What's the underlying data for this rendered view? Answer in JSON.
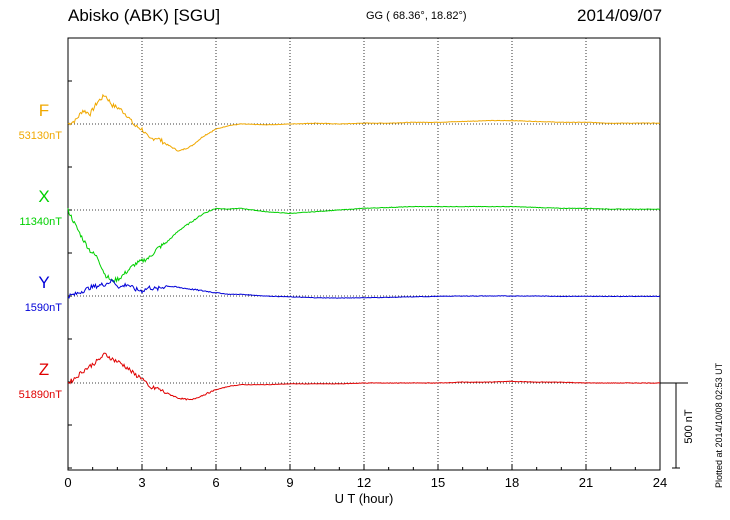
{
  "header": {
    "station": "Abisko (ABK)  [SGU]",
    "coords": "GG ( 68.36°,  18.82°)",
    "date": "2014/09/07"
  },
  "footer": {
    "plotted": "Plotted at 2014/10/08 02:53 UT"
  },
  "chart_data": {
    "type": "line",
    "title": "Abisko (ABK)  [SGU]",
    "xlabel": "U T (hour)",
    "ylabel": "",
    "xlim": [
      0,
      24
    ],
    "xticks": [
      "0",
      "3",
      "6",
      "9",
      "12",
      "15",
      "18",
      "21",
      "24"
    ],
    "scale_bar_label": "500 nT",
    "scale_bar_nT": 500,
    "grid": true,
    "series": [
      {
        "name": "F",
        "baseline_label": "53130nT",
        "baseline_nT": 53130,
        "color": "#f0a800",
        "x": [
          0,
          0.3,
          0.6,
          0.9,
          1.2,
          1.5,
          1.8,
          2.1,
          2.4,
          2.7,
          3.0,
          3.3,
          3.6,
          4.0,
          4.5,
          5.0,
          5.5,
          6.0,
          6.5,
          7.0,
          8.0,
          9.0,
          10,
          11,
          12,
          13,
          14,
          15,
          16,
          17,
          18,
          19,
          20,
          21,
          22,
          23,
          24
        ],
        "y": [
          53130,
          53150,
          53210,
          53190,
          53260,
          53300,
          53240,
          53220,
          53180,
          53120,
          53100,
          53040,
          53050,
          53010,
          52970,
          53000,
          53060,
          53100,
          53120,
          53130,
          53125,
          53130,
          53135,
          53130,
          53135,
          53135,
          53140,
          53140,
          53145,
          53150,
          53150,
          53145,
          53140,
          53140,
          53135,
          53135,
          53135
        ]
      },
      {
        "name": "X",
        "baseline_label": "11340nT",
        "baseline_nT": 11340,
        "color": "#00d000",
        "x": [
          0,
          0.3,
          0.6,
          0.9,
          1.2,
          1.5,
          1.8,
          2.1,
          2.4,
          2.7,
          3.0,
          3.3,
          3.6,
          4.0,
          4.5,
          5.0,
          5.5,
          6.0,
          6.5,
          7.0,
          8.0,
          9.0,
          10,
          11,
          12,
          13,
          14,
          15,
          16,
          17,
          18,
          19,
          20,
          21,
          22,
          23,
          24
        ],
        "y": [
          11340,
          11250,
          11170,
          11100,
          11060,
          10960,
          10920,
          10940,
          10980,
          11020,
          11040,
          11060,
          11110,
          11150,
          11220,
          11270,
          11320,
          11350,
          11345,
          11350,
          11330,
          11320,
          11330,
          11340,
          11350,
          11355,
          11360,
          11360,
          11360,
          11360,
          11360,
          11355,
          11350,
          11350,
          11345,
          11345,
          11345
        ]
      },
      {
        "name": "Y",
        "baseline_label": "1590nT",
        "baseline_nT": 1590,
        "color": "#0000d8",
        "x": [
          0,
          0.3,
          0.6,
          0.9,
          1.2,
          1.5,
          1.8,
          2.1,
          2.4,
          2.7,
          3.0,
          3.3,
          3.6,
          4.0,
          4.5,
          5.0,
          5.5,
          6.0,
          6.5,
          7.0,
          8.0,
          9.0,
          10,
          11,
          12,
          13,
          14,
          15,
          16,
          17,
          18,
          19,
          20,
          21,
          22,
          23,
          24
        ],
        "y": [
          1590,
          1600,
          1620,
          1640,
          1650,
          1660,
          1680,
          1640,
          1660,
          1630,
          1620,
          1640,
          1630,
          1650,
          1640,
          1630,
          1620,
          1610,
          1600,
          1600,
          1590,
          1585,
          1580,
          1578,
          1580,
          1582,
          1585,
          1588,
          1590,
          1590,
          1590,
          1590,
          1588,
          1588,
          1588,
          1588,
          1588
        ]
      },
      {
        "name": "Z",
        "baseline_label": "51890nT",
        "baseline_nT": 51890,
        "color": "#e00000",
        "x": [
          0,
          0.3,
          0.6,
          0.9,
          1.2,
          1.5,
          1.8,
          2.1,
          2.4,
          2.7,
          3.0,
          3.3,
          3.6,
          4.0,
          4.5,
          5.0,
          5.5,
          6.0,
          6.5,
          7.0,
          8.0,
          9.0,
          10,
          11,
          12,
          13,
          14,
          15,
          16,
          17,
          18,
          19,
          20,
          21,
          22,
          23,
          24
        ],
        "y": [
          51890,
          51920,
          51960,
          51990,
          52020,
          52060,
          52030,
          52010,
          51980,
          51940,
          51920,
          51860,
          51860,
          51830,
          51800,
          51790,
          51820,
          51850,
          51870,
          51880,
          51880,
          51885,
          51885,
          51885,
          51890,
          51890,
          51890,
          51890,
          51895,
          51895,
          51900,
          51895,
          51895,
          51890,
          51890,
          51890,
          51890
        ]
      }
    ]
  }
}
